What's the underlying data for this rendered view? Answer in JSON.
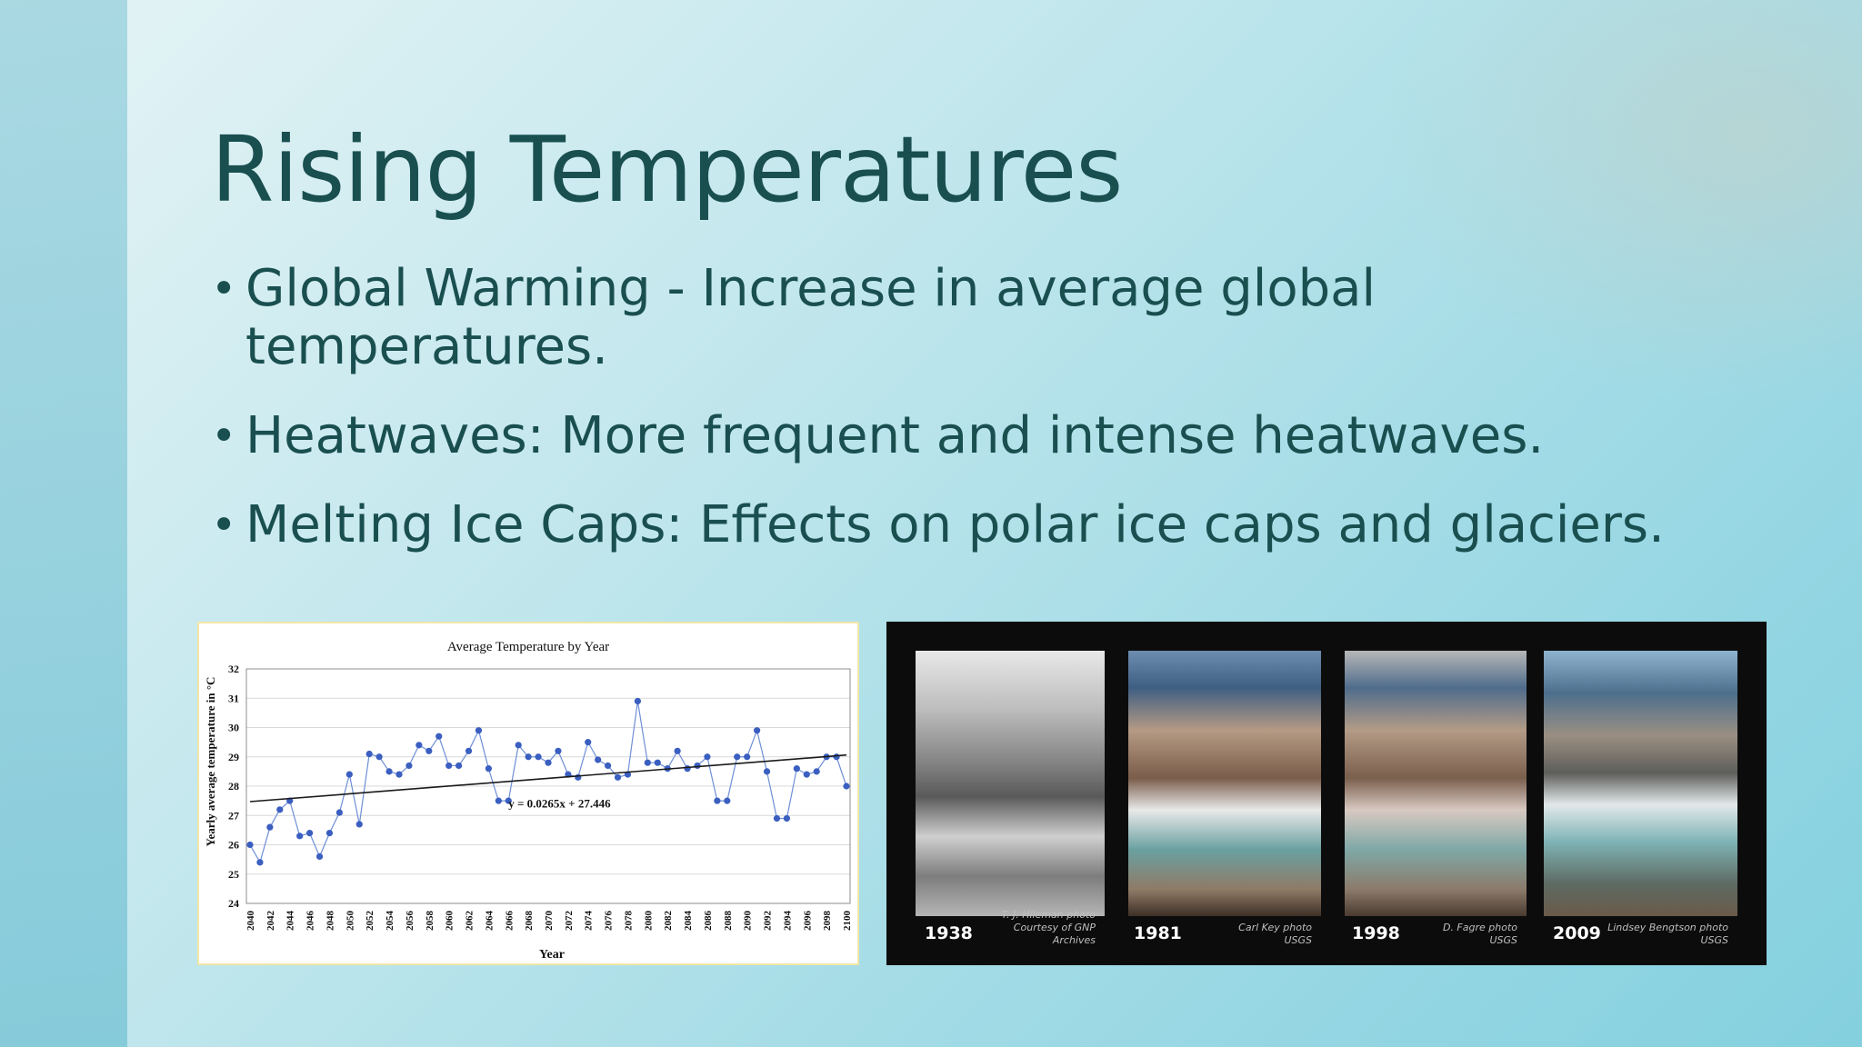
{
  "slide": {
    "title": "Rising Temperatures",
    "bullets": [
      "Global Warming - Increase in average global temperatures.",
      "Heatwaves: More frequent and intense heatwaves.",
      "Melting Ice Caps: Effects on polar ice caps and glaciers."
    ]
  },
  "chart_data": {
    "type": "scatter",
    "title": "Average Temperature by Year",
    "xlabel": "Year",
    "ylabel": "Yearly average temperature in °C",
    "ylim": [
      24,
      32
    ],
    "yticks": [
      24,
      25,
      26,
      27,
      28,
      29,
      30,
      31,
      32
    ],
    "xticks": [
      2040,
      2042,
      2044,
      2046,
      2048,
      2050,
      2052,
      2054,
      2056,
      2058,
      2060,
      2062,
      2064,
      2066,
      2068,
      2070,
      2072,
      2074,
      2076,
      2078,
      2080,
      2082,
      2084,
      2086,
      2088,
      2090,
      2092,
      2094,
      2096,
      2098,
      2100
    ],
    "grid": "horizontal",
    "trendline": {
      "label": "y = 0.0265x + 27.446",
      "slope": 0.0265,
      "intercept": 27.446
    },
    "x": [
      2040,
      2041,
      2042,
      2043,
      2044,
      2045,
      2046,
      2047,
      2048,
      2049,
      2050,
      2051,
      2052,
      2053,
      2054,
      2055,
      2056,
      2057,
      2058,
      2059,
      2060,
      2061,
      2062,
      2063,
      2064,
      2065,
      2066,
      2067,
      2068,
      2069,
      2070,
      2071,
      2072,
      2073,
      2074,
      2075,
      2076,
      2077,
      2078,
      2079,
      2080,
      2081,
      2082,
      2083,
      2084,
      2085,
      2086,
      2087,
      2088,
      2089,
      2090,
      2091,
      2092,
      2093,
      2094,
      2095,
      2096,
      2097,
      2098,
      2099,
      2100
    ],
    "y": [
      26.0,
      25.4,
      26.6,
      27.2,
      27.5,
      26.3,
      26.4,
      25.6,
      26.4,
      27.1,
      28.4,
      26.7,
      29.1,
      29.0,
      28.5,
      28.4,
      28.7,
      29.4,
      29.2,
      29.7,
      28.7,
      28.7,
      29.2,
      29.9,
      28.6,
      27.5,
      27.5,
      29.4,
      29.0,
      29.0,
      28.8,
      29.2,
      28.4,
      28.3,
      29.5,
      28.9,
      28.7,
      28.3,
      28.4,
      30.9,
      28.8,
      28.8,
      28.6,
      29.2,
      28.6,
      28.7,
      29.0,
      27.5,
      27.5,
      29.0,
      29.0,
      29.9,
      28.5,
      26.9,
      26.9,
      28.6,
      28.4,
      28.5,
      29.0,
      29.0,
      28.0
    ]
  },
  "glacier_photos": [
    {
      "year": "1938",
      "credit_line1": "T. J. Hileman photo",
      "credit_line2": "Courtesy of GNP Archives"
    },
    {
      "year": "1981",
      "credit_line1": "Carl Key photo",
      "credit_line2": "USGS"
    },
    {
      "year": "1998",
      "credit_line1": "D. Fagre photo",
      "credit_line2": "USGS"
    },
    {
      "year": "2009",
      "credit_line1": "Lindsey Bengtson photo",
      "credit_line2": "USGS"
    }
  ],
  "colors": {
    "title": "#1a4f50",
    "marker": "#3b5fc0",
    "trendline": "#1a1a1a"
  }
}
